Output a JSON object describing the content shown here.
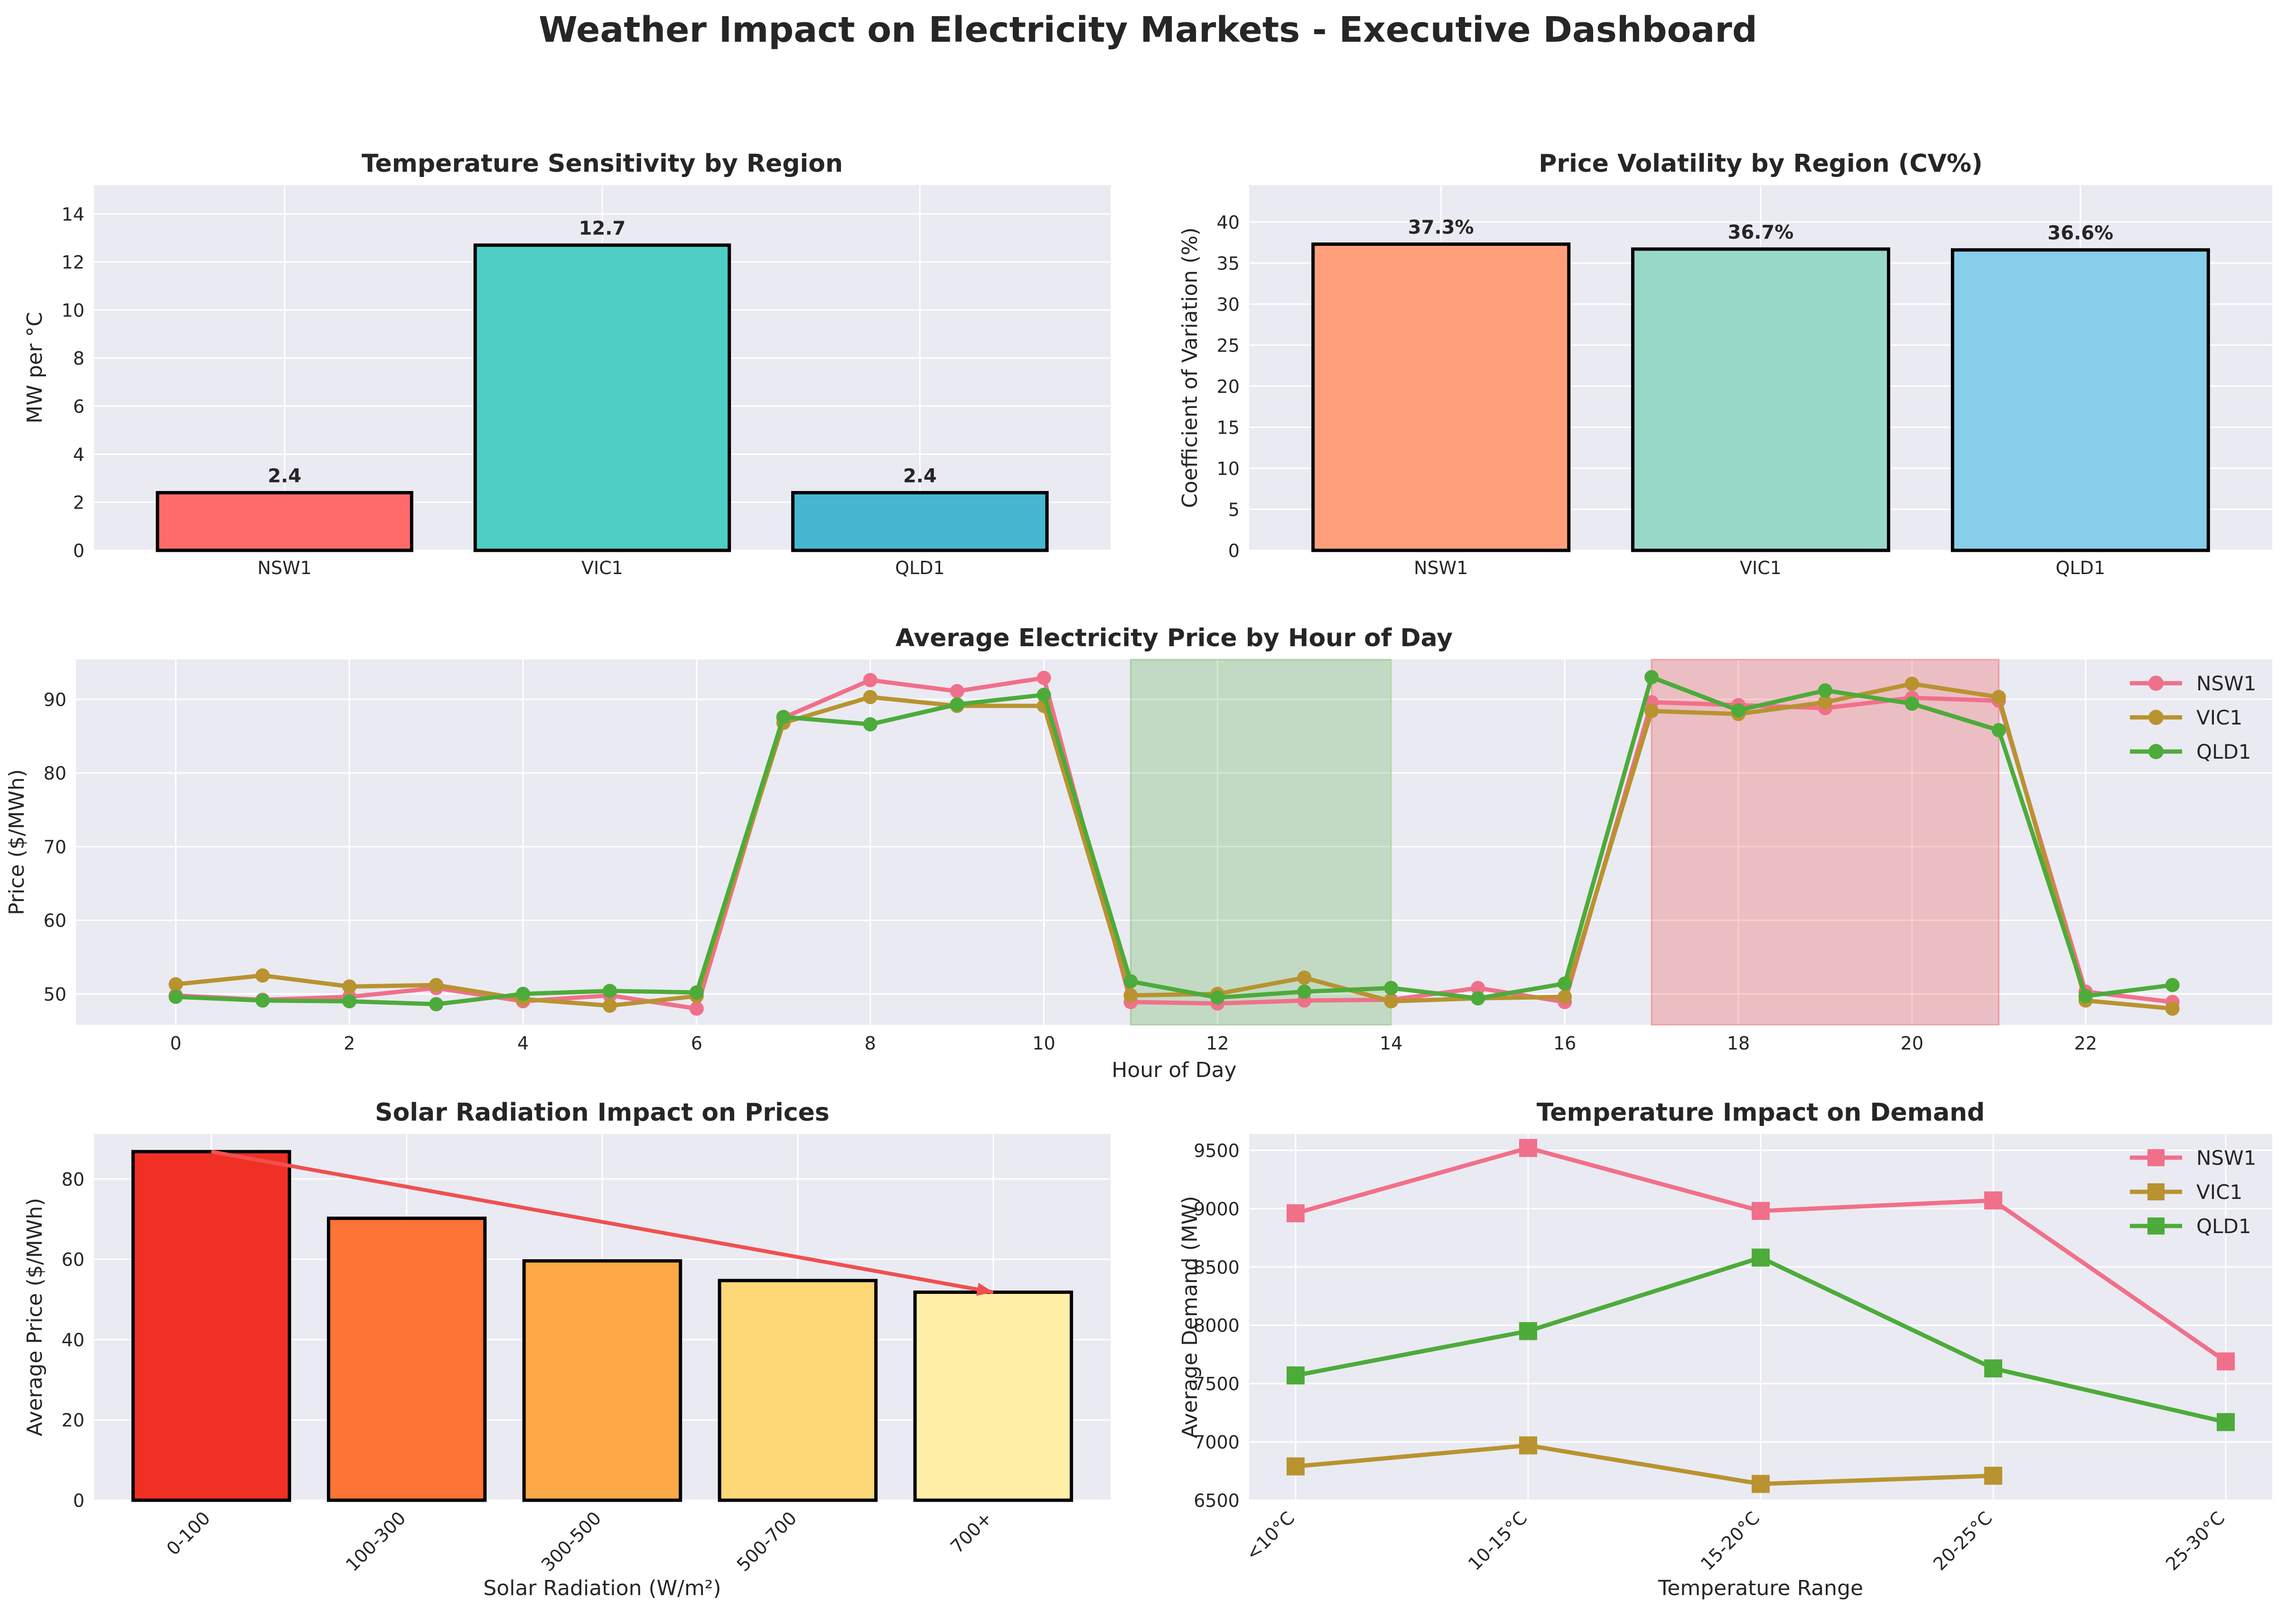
{
  "dashboard": {
    "title": "Weather Impact on Electricity Markets - Executive Dashboard"
  },
  "chart_data": [
    {
      "id": "temp_sensitivity",
      "type": "bar",
      "title": "Temperature Sensitivity by Region",
      "xlabel": "",
      "ylabel": "MW per °C",
      "categories": [
        "NSW1",
        "VIC1",
        "QLD1"
      ],
      "values": [
        2.4,
        12.7,
        2.4
      ],
      "value_labels": [
        "2.4",
        "12.7",
        "2.4"
      ],
      "colors": [
        "#ff6b6b",
        "#4ecdc4",
        "#45b7d1"
      ],
      "ylim": [
        0,
        15.2
      ],
      "yticks": [
        0,
        2,
        4,
        6,
        8,
        10,
        12,
        14
      ],
      "grid": true
    },
    {
      "id": "price_volatility",
      "type": "bar",
      "title": "Price Volatility by Region (CV%)",
      "xlabel": "",
      "ylabel": "Coefficient of Variation (%)",
      "categories": [
        "NSW1",
        "VIC1",
        "QLD1"
      ],
      "values": [
        37.3,
        36.7,
        36.6
      ],
      "value_labels": [
        "37.3%",
        "36.7%",
        "36.6%"
      ],
      "colors": [
        "#ffa07a",
        "#98d8c8",
        "#87ceeb"
      ],
      "ylim": [
        0,
        44.5
      ],
      "yticks": [
        0,
        5,
        10,
        15,
        20,
        25,
        30,
        35,
        40
      ],
      "grid": true
    },
    {
      "id": "hourly_price",
      "type": "line",
      "title": "Average Electricity Price by Hour of Day",
      "xlabel": "Hour of Day",
      "ylabel": "Price ($/MWh)",
      "x": [
        0,
        1,
        2,
        3,
        4,
        5,
        6,
        7,
        8,
        9,
        10,
        11,
        12,
        13,
        14,
        15,
        16,
        17,
        18,
        19,
        20,
        21,
        22,
        23
      ],
      "xlim": [
        -1.15,
        24.15
      ],
      "ylim": [
        45.8,
        95.4
      ],
      "xticks": [
        0,
        2,
        4,
        6,
        8,
        10,
        12,
        14,
        16,
        18,
        20,
        22
      ],
      "yticks": [
        50,
        60,
        70,
        80,
        90
      ],
      "series": [
        {
          "name": "NSW1",
          "color": "#f0708a",
          "values": [
            49.8,
            49.2,
            49.6,
            50.8,
            49.0,
            49.8,
            48.0,
            87.5,
            92.6,
            91.1,
            92.9,
            48.9,
            48.7,
            49.1,
            49.2,
            50.8,
            48.9,
            89.6,
            89.2,
            88.8,
            90.2,
            89.8,
            50.3,
            48.9
          ]
        },
        {
          "name": "VIC1",
          "color": "#b89330",
          "values": [
            51.3,
            52.5,
            51.0,
            51.2,
            49.3,
            48.4,
            49.7,
            86.8,
            90.3,
            89.1,
            89.1,
            49.8,
            50.0,
            52.2,
            49.0,
            49.4,
            49.6,
            88.4,
            88.0,
            89.6,
            92.1,
            90.3,
            49.1,
            48.0
          ]
        },
        {
          "name": "QLD1",
          "color": "#4dab3a",
          "values": [
            49.6,
            49.1,
            49.0,
            48.6,
            50.0,
            50.4,
            50.2,
            87.6,
            86.6,
            89.3,
            90.6,
            51.7,
            49.5,
            50.3,
            50.8,
            49.4,
            51.4,
            93.0,
            88.5,
            91.2,
            89.4,
            85.8,
            49.7,
            51.2
          ]
        }
      ],
      "shaded_regions": [
        {
          "x0": 11,
          "x1": 14,
          "color": "#4dab3a"
        },
        {
          "x0": 17,
          "x1": 21,
          "color": "#f03b3b"
        }
      ],
      "legend": "top-right",
      "grid": true
    },
    {
      "id": "solar_impact",
      "type": "bar",
      "title": "Solar Radiation Impact on Prices",
      "xlabel": "Solar Radiation (W/m²)",
      "ylabel": "Average Price ($/MWh)",
      "categories": [
        "0-100",
        "100-300",
        "300-500",
        "500-700",
        "700+"
      ],
      "values": [
        86.8,
        70.2,
        59.6,
        54.7,
        51.8
      ],
      "colors": [
        "#f03024",
        "#fe7336",
        "#fea848",
        "#fed776",
        "#ffeea5"
      ],
      "ylim": [
        0,
        91.2
      ],
      "yticks": [
        0,
        20,
        40,
        60,
        80
      ],
      "trend_arrow": {
        "from": "0-100",
        "to": "700+",
        "color": "#f05050"
      },
      "grid": true
    },
    {
      "id": "temp_demand",
      "type": "line",
      "title": "Temperature Impact on Demand",
      "xlabel": "Temperature Range",
      "ylabel": "Average Demand (MW)",
      "categories": [
        "<10°C",
        "10-15°C",
        "15-20°C",
        "20-25°C",
        "25-30°C"
      ],
      "ylim": [
        6500,
        9640
      ],
      "yticks": [
        6500,
        7000,
        7500,
        8000,
        8500,
        9000,
        9500
      ],
      "series": [
        {
          "name": "NSW1",
          "color": "#f0708a",
          "values": [
            8960,
            9520,
            8980,
            9070,
            7690
          ]
        },
        {
          "name": "VIC1",
          "color": "#b89330",
          "values": [
            6790,
            6970,
            6640,
            6710,
            null
          ]
        },
        {
          "name": "QLD1",
          "color": "#4dab3a",
          "values": [
            7570,
            7950,
            8580,
            7630,
            7170
          ]
        }
      ],
      "legend": "top-right",
      "grid": true
    }
  ]
}
